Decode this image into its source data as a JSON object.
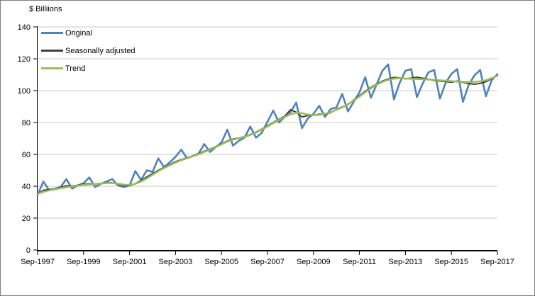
{
  "chart": {
    "title": "$ Billiions"
  },
  "chart_data": {
    "type": "line",
    "title": "$ Billiions",
    "xlabel": "",
    "ylabel": "$ Billiions",
    "frequency": "quarterly",
    "x_start": "Sep-1997",
    "x_end": "Sep-2017",
    "n_points": 81,
    "ylim": [
      0,
      140
    ],
    "y_ticks": [
      0,
      20,
      40,
      60,
      80,
      100,
      120,
      140
    ],
    "x_tick_labels": [
      "Sep-1997",
      "Sep-1999",
      "Sep-2001",
      "Sep-2003",
      "Sep-2005",
      "Sep-2007",
      "Sep-2009",
      "Sep-2011",
      "Sep-2013",
      "Sep-2015",
      "Sep-2017"
    ],
    "x_tick_every_n_points": 8,
    "grid": "horizontal",
    "legend_position": "top-left-inside",
    "colors": {
      "original": "#4f81bd",
      "seasonally_adjusted": "#404040",
      "trend": "#9bbb59",
      "gridline": "#c9c9c9",
      "axis": "#000000"
    },
    "series": [
      {
        "name": "Original",
        "color": "#4f81bd",
        "width": 2.6,
        "values": [
          34.5,
          43.0,
          37.5,
          38.5,
          39.5,
          44.5,
          38.5,
          40.5,
          42.0,
          45.5,
          39.5,
          41.5,
          43.0,
          44.5,
          40.5,
          39.5,
          40.5,
          49.5,
          44.0,
          50.0,
          49.0,
          57.5,
          52.0,
          55.0,
          58.5,
          63.0,
          57.5,
          59.0,
          60.5,
          66.5,
          61.5,
          64.5,
          67.5,
          75.5,
          65.5,
          68.5,
          70.5,
          77.5,
          70.5,
          73.5,
          80.5,
          87.5,
          80.0,
          83.5,
          86.5,
          92.5,
          76.5,
          82.5,
          85.5,
          90.5,
          83.5,
          88.5,
          89.5,
          98.0,
          87.0,
          93.0,
          99.0,
          108.5,
          95.5,
          104.0,
          112.5,
          116.5,
          94.5,
          105.0,
          112.5,
          113.5,
          96.0,
          104.5,
          111.5,
          113.0,
          95.0,
          105.0,
          110.5,
          113.5,
          93.0,
          103.5,
          109.5,
          113.0,
          96.5,
          106.5,
          110.3
        ]
      },
      {
        "name": "Seasonally adjusted",
        "color": "#404040",
        "width": 2,
        "values": [
          35.0,
          37.5,
          38.0,
          38.3,
          39.3,
          40.3,
          40.2,
          40.6,
          41.3,
          41.6,
          41.2,
          41.6,
          42.4,
          42.2,
          41.3,
          40.4,
          40.3,
          41.6,
          43.7,
          45.8,
          47.9,
          50.0,
          51.9,
          53.6,
          55.4,
          56.7,
          57.9,
          59.0,
          60.4,
          61.9,
          63.3,
          64.9,
          66.6,
          68.4,
          69.6,
          70.3,
          71.2,
          72.5,
          74.0,
          75.8,
          77.9,
          80.0,
          82.0,
          84.0,
          88.0,
          86.5,
          83.5,
          84.3,
          84.5,
          85.3,
          85.2,
          86.2,
          88.3,
          89.8,
          91.2,
          94.2,
          96.8,
          99.5,
          102.0,
          104.2,
          106.0,
          107.3,
          108.3,
          108.0,
          107.4,
          107.8,
          108.4,
          107.8,
          107.2,
          106.4,
          106.0,
          105.7,
          105.3,
          106.0,
          105.2,
          104.5,
          104.0,
          104.6,
          105.6,
          107.5,
          109.6
        ]
      },
      {
        "name": "Trend",
        "color": "#9bbb59",
        "width": 2.6,
        "values": [
          35.2,
          36.5,
          37.4,
          38.1,
          38.8,
          39.4,
          39.9,
          40.3,
          40.8,
          41.1,
          41.4,
          41.7,
          42.0,
          42.0,
          41.6,
          41.0,
          40.8,
          41.5,
          43.0,
          45.0,
          47.2,
          49.4,
          51.4,
          53.2,
          54.9,
          56.3,
          57.6,
          58.8,
          60.1,
          61.5,
          63.0,
          64.6,
          66.3,
          68.0,
          69.2,
          70.1,
          71.0,
          72.2,
          73.7,
          75.5,
          77.5,
          79.6,
          81.6,
          83.5,
          85.2,
          86.2,
          85.8,
          85.0,
          84.6,
          84.8,
          85.5,
          86.5,
          88.0,
          89.5,
          91.5,
          93.8,
          96.3,
          99.0,
          101.5,
          103.8,
          105.5,
          106.8,
          107.5,
          107.8,
          107.6,
          107.4,
          107.3,
          107.2,
          107.0,
          106.8,
          106.5,
          106.2,
          105.9,
          105.7,
          105.5,
          105.4,
          105.5,
          105.8,
          106.5,
          107.8,
          109.3
        ]
      }
    ]
  }
}
